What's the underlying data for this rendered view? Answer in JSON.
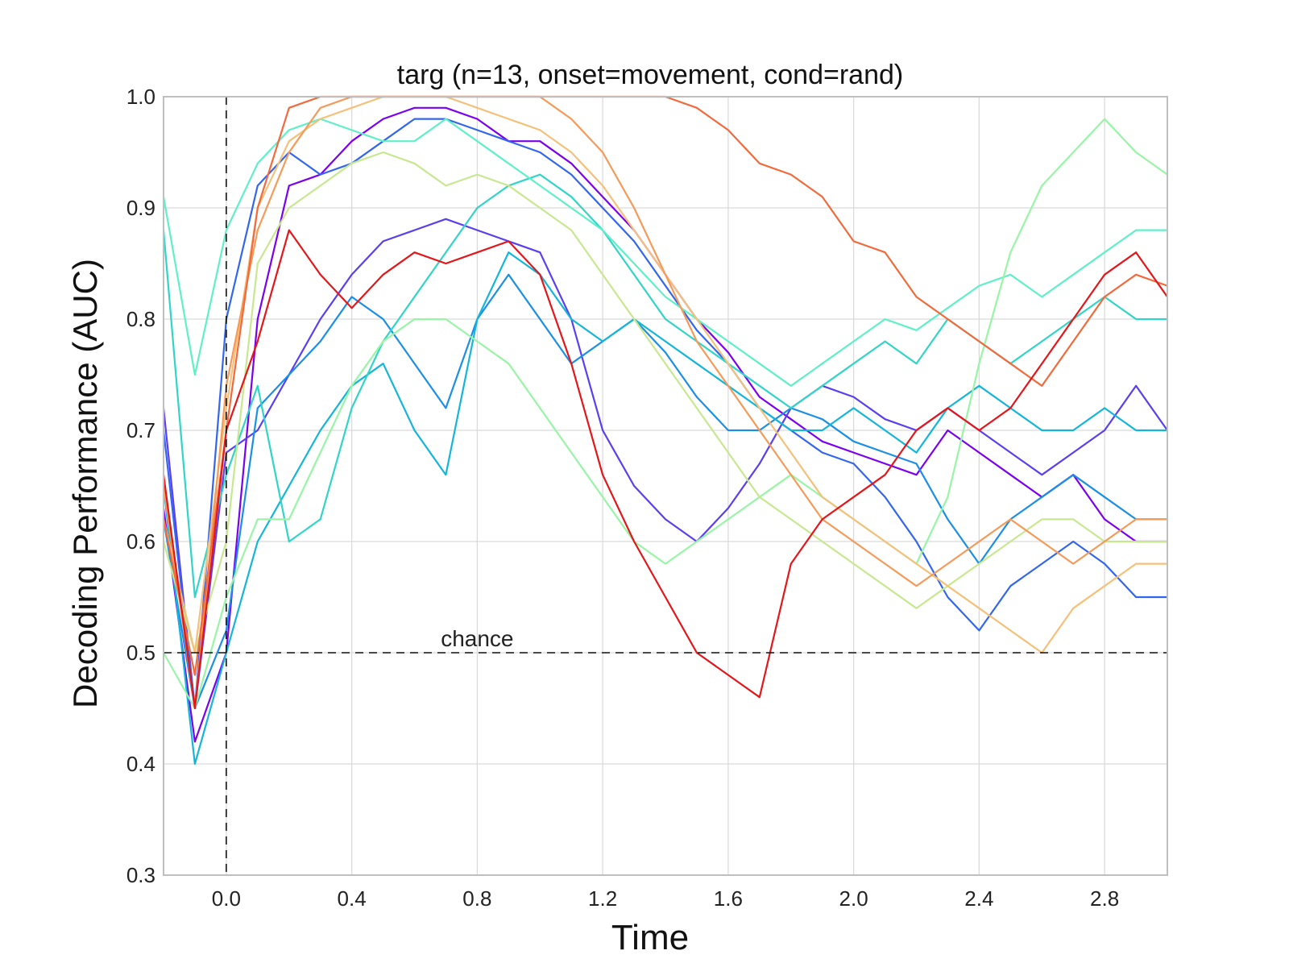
{
  "chart_data": {
    "type": "line",
    "title": "targ (n=13, onset=movement, cond=rand)",
    "xlabel": "Time",
    "ylabel": "Decoding Performance (AUC)",
    "xlim": [
      -0.2,
      3.0
    ],
    "ylim": [
      0.3,
      1.0
    ],
    "xticks": [
      0.0,
      0.4,
      0.8,
      1.2,
      1.6,
      2.0,
      2.4,
      2.8
    ],
    "xtick_labels": [
      "0.0",
      "0.4",
      "0.8",
      "1.2",
      "1.6",
      "2.0",
      "2.4",
      "2.8"
    ],
    "yticks": [
      0.3,
      0.4,
      0.5,
      0.6,
      0.7,
      0.8,
      0.9,
      1.0
    ],
    "ytick_labels": [
      "0.3",
      "0.4",
      "0.5",
      "0.6",
      "0.7",
      "0.8",
      "0.9",
      "1.0"
    ],
    "grid": true,
    "chance_level": 0.5,
    "chance_label": "chance",
    "onset_x": 0.0,
    "colors": {
      "grid": "#d9d9d9",
      "frame": "#bfbfbf",
      "reference": "#111111"
    },
    "x": [
      -0.2,
      -0.1,
      0.0,
      0.1,
      0.2,
      0.3,
      0.4,
      0.5,
      0.6,
      0.7,
      0.8,
      0.9,
      1.0,
      1.1,
      1.2,
      1.3,
      1.4,
      1.5,
      1.6,
      1.7,
      1.8,
      1.9,
      2.0,
      2.1,
      2.2,
      2.3,
      2.4,
      2.5,
      2.6,
      2.7,
      2.8,
      2.9,
      3.0
    ],
    "series": [
      {
        "color": "#7b00f0",
        "values": [
          0.63,
          0.42,
          0.5,
          0.8,
          0.92,
          0.93,
          0.96,
          0.98,
          0.99,
          0.99,
          0.98,
          0.96,
          0.96,
          0.94,
          0.91,
          0.88,
          0.84,
          0.8,
          0.77,
          0.73,
          0.71,
          0.69,
          0.68,
          0.67,
          0.66,
          0.7,
          0.68,
          0.66,
          0.64,
          0.66,
          0.62,
          0.6,
          0.6
        ]
      },
      {
        "color": "#5a3ff0",
        "values": [
          0.72,
          0.45,
          0.68,
          0.7,
          0.75,
          0.8,
          0.84,
          0.87,
          0.88,
          0.89,
          0.88,
          0.87,
          0.86,
          0.8,
          0.7,
          0.65,
          0.62,
          0.6,
          0.63,
          0.67,
          0.72,
          0.74,
          0.73,
          0.71,
          0.7,
          0.72,
          0.7,
          0.68,
          0.66,
          0.68,
          0.7,
          0.74,
          0.7
        ]
      },
      {
        "color": "#3366ee",
        "values": [
          0.7,
          0.45,
          0.8,
          0.92,
          0.95,
          0.93,
          0.94,
          0.96,
          0.98,
          0.98,
          0.97,
          0.96,
          0.95,
          0.93,
          0.9,
          0.87,
          0.83,
          0.79,
          0.76,
          0.72,
          0.7,
          0.68,
          0.67,
          0.64,
          0.6,
          0.55,
          0.52,
          0.56,
          0.58,
          0.6,
          0.58,
          0.55,
          0.55
        ]
      },
      {
        "color": "#1b8fe6",
        "values": [
          0.62,
          0.45,
          0.52,
          0.72,
          0.75,
          0.78,
          0.82,
          0.8,
          0.76,
          0.72,
          0.8,
          0.84,
          0.8,
          0.76,
          0.78,
          0.8,
          0.77,
          0.73,
          0.7,
          0.7,
          0.72,
          0.71,
          0.69,
          0.68,
          0.67,
          0.62,
          0.58,
          0.62,
          0.64,
          0.66,
          0.64,
          0.62,
          0.62
        ]
      },
      {
        "color": "#13b6d8",
        "values": [
          0.65,
          0.4,
          0.5,
          0.6,
          0.65,
          0.7,
          0.74,
          0.76,
          0.7,
          0.66,
          0.8,
          0.86,
          0.84,
          0.8,
          0.78,
          0.8,
          0.78,
          0.76,
          0.74,
          0.72,
          0.7,
          0.7,
          0.72,
          0.7,
          0.68,
          0.72,
          0.74,
          0.72,
          0.7,
          0.7,
          0.72,
          0.7,
          0.7
        ]
      },
      {
        "color": "#30d5c8",
        "values": [
          0.88,
          0.55,
          0.66,
          0.74,
          0.6,
          0.62,
          0.72,
          0.78,
          0.82,
          0.86,
          0.9,
          0.92,
          0.93,
          0.91,
          0.88,
          0.84,
          0.8,
          0.78,
          0.76,
          0.74,
          0.72,
          0.74,
          0.76,
          0.78,
          0.76,
          0.8,
          0.78,
          0.76,
          0.78,
          0.8,
          0.82,
          0.8,
          0.8
        ]
      },
      {
        "color": "#5ff0c8",
        "values": [
          0.91,
          0.75,
          0.88,
          0.94,
          0.97,
          0.98,
          0.97,
          0.96,
          0.96,
          0.98,
          0.96,
          0.94,
          0.92,
          0.9,
          0.88,
          0.85,
          0.82,
          0.8,
          0.78,
          0.76,
          0.74,
          0.76,
          0.78,
          0.8,
          0.79,
          0.81,
          0.83,
          0.84,
          0.82,
          0.84,
          0.86,
          0.88,
          0.88
        ]
      },
      {
        "color": "#98f5a6",
        "values": [
          0.5,
          0.45,
          0.55,
          0.62,
          0.62,
          0.68,
          0.74,
          0.78,
          0.8,
          0.8,
          0.78,
          0.76,
          0.72,
          0.68,
          0.64,
          0.6,
          0.58,
          0.6,
          0.62,
          0.64,
          0.66,
          0.64,
          0.62,
          0.6,
          0.58,
          0.64,
          0.76,
          0.86,
          0.92,
          0.95,
          0.98,
          0.95,
          0.93
        ]
      },
      {
        "color": "#c8e890",
        "values": [
          0.6,
          0.5,
          0.6,
          0.85,
          0.9,
          0.92,
          0.94,
          0.95,
          0.94,
          0.92,
          0.93,
          0.92,
          0.9,
          0.88,
          0.84,
          0.8,
          0.76,
          0.72,
          0.68,
          0.64,
          0.62,
          0.6,
          0.58,
          0.56,
          0.54,
          0.56,
          0.58,
          0.6,
          0.62,
          0.62,
          0.6,
          0.6,
          0.6
        ]
      },
      {
        "color": "#f5c07a",
        "values": [
          0.62,
          0.5,
          0.72,
          0.9,
          0.96,
          0.98,
          0.99,
          1.0,
          1.0,
          1.0,
          0.99,
          0.98,
          0.97,
          0.95,
          0.92,
          0.88,
          0.84,
          0.8,
          0.76,
          0.72,
          0.68,
          0.64,
          0.62,
          0.6,
          0.58,
          0.56,
          0.54,
          0.52,
          0.5,
          0.54,
          0.56,
          0.58,
          0.58
        ]
      },
      {
        "color": "#f59a58",
        "values": [
          0.65,
          0.45,
          0.74,
          0.88,
          0.95,
          0.99,
          1.0,
          1.0,
          1.0,
          1.0,
          1.0,
          1.0,
          1.0,
          0.98,
          0.95,
          0.9,
          0.84,
          0.78,
          0.74,
          0.7,
          0.66,
          0.62,
          0.6,
          0.58,
          0.56,
          0.58,
          0.6,
          0.62,
          0.6,
          0.58,
          0.6,
          0.62,
          0.62
        ]
      },
      {
        "color": "#f26a3c",
        "values": [
          0.62,
          0.48,
          0.7,
          0.9,
          0.99,
          1.0,
          1.0,
          1.0,
          1.0,
          1.0,
          1.0,
          1.0,
          1.0,
          1.0,
          1.0,
          1.0,
          1.0,
          0.99,
          0.97,
          0.94,
          0.93,
          0.91,
          0.87,
          0.86,
          0.82,
          0.8,
          0.78,
          0.76,
          0.74,
          0.78,
          0.82,
          0.84,
          0.83
        ]
      },
      {
        "color": "#e4161a",
        "values": [
          0.66,
          0.45,
          0.7,
          0.78,
          0.88,
          0.84,
          0.81,
          0.84,
          0.86,
          0.85,
          0.86,
          0.87,
          0.84,
          0.76,
          0.66,
          0.6,
          0.55,
          0.5,
          0.48,
          0.46,
          0.58,
          0.62,
          0.64,
          0.66,
          0.7,
          0.72,
          0.7,
          0.72,
          0.76,
          0.8,
          0.84,
          0.86,
          0.82
        ]
      }
    ]
  }
}
